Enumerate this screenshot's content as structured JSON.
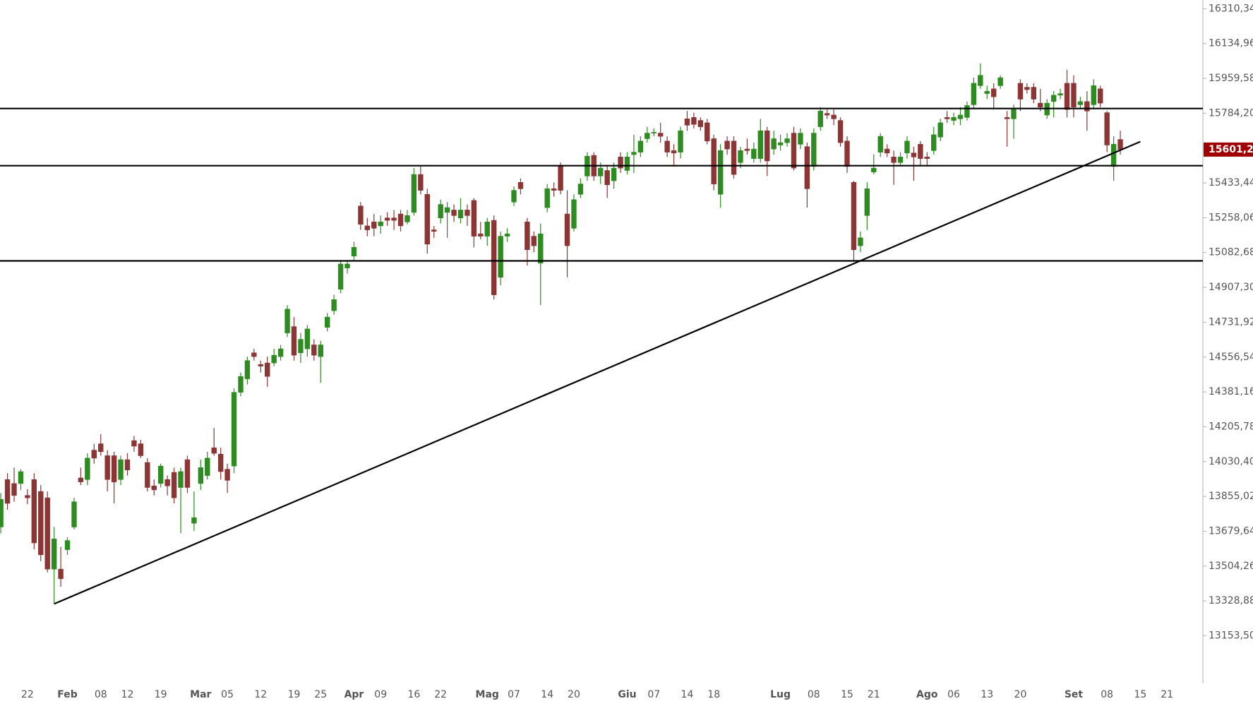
{
  "chart_data": {
    "type": "candlestick",
    "categories": [
      null,
      null,
      null,
      null,
      "22",
      null,
      null,
      null,
      null,
      null,
      "Feb",
      null,
      null,
      null,
      null,
      "08",
      null,
      null,
      null,
      "12",
      null,
      null,
      null,
      null,
      "19",
      null,
      null,
      null,
      null,
      null,
      "Mar",
      null,
      null,
      null,
      "05",
      null,
      null,
      null,
      null,
      "12",
      null,
      null,
      null,
      null,
      "19",
      null,
      null,
      null,
      "25",
      null,
      null,
      null,
      null,
      "Apr",
      null,
      null,
      null,
      "09",
      null,
      null,
      null,
      null,
      "16",
      null,
      null,
      null,
      "22",
      null,
      null,
      null,
      null,
      null,
      null,
      "Mag",
      null,
      null,
      null,
      "07",
      null,
      null,
      null,
      null,
      "14",
      null,
      null,
      null,
      "20",
      null,
      null,
      null,
      null,
      null,
      null,
      null,
      "Giu",
      null,
      null,
      null,
      "07",
      null,
      null,
      null,
      null,
      "14",
      null,
      null,
      null,
      "18",
      null,
      null,
      null,
      null,
      null,
      null,
      null,
      null,
      null,
      "Lug",
      null,
      null,
      null,
      null,
      "08",
      null,
      null,
      null,
      null,
      "15",
      null,
      null,
      null,
      "21",
      null,
      null,
      null,
      null,
      null,
      null,
      null,
      "Ago",
      null,
      null,
      null,
      "06",
      null,
      null,
      null,
      null,
      "13",
      null,
      null,
      null,
      null,
      "20",
      null,
      null,
      null,
      null,
      null,
      null,
      null,
      "Set",
      null,
      null,
      null,
      null,
      "08",
      null,
      null,
      null,
      null,
      "15",
      null,
      null,
      null,
      "21"
    ],
    "values": [
      [
        13701,
        13872,
        13669,
        13840
      ],
      [
        13940,
        13972,
        13788,
        13820
      ],
      [
        13920,
        14000,
        13828,
        13860
      ],
      [
        13920,
        13992,
        13888,
        13980
      ],
      [
        13860,
        13892,
        13816,
        13848
      ],
      [
        13940,
        13972,
        13589,
        13621
      ],
      [
        13880,
        13912,
        13529,
        13561
      ],
      [
        13848,
        13880,
        13473,
        13489
      ],
      [
        13489,
        13701,
        13314,
        13641
      ],
      [
        13489,
        13601,
        13401,
        13441
      ],
      [
        13587,
        13649,
        13561,
        13633
      ],
      [
        13701,
        13848,
        13689,
        13828
      ],
      [
        13948,
        14000,
        13912,
        13928
      ],
      [
        13940,
        14072,
        13912,
        14048
      ],
      [
        14088,
        14120,
        14020,
        14048
      ],
      [
        14120,
        14168,
        14060,
        14080
      ],
      [
        14060,
        14088,
        13880,
        13940
      ],
      [
        14060,
        14080,
        13820,
        13928
      ],
      [
        13940,
        14060,
        13912,
        14040
      ],
      [
        14040,
        14072,
        13960,
        13988
      ],
      [
        14136,
        14160,
        14080,
        14108
      ],
      [
        14120,
        14140,
        14048,
        14060
      ],
      [
        14026,
        14048,
        13880,
        13900
      ],
      [
        13908,
        13940,
        13860,
        13888
      ],
      [
        13920,
        14020,
        13900,
        14008
      ],
      [
        13940,
        13960,
        13860,
        13908
      ],
      [
        13976,
        14000,
        13820,
        13848
      ],
      [
        13900,
        14000,
        13669,
        13980
      ],
      [
        14040,
        14060,
        13872,
        13900
      ],
      [
        13720,
        13880,
        13681,
        13748
      ],
      [
        13920,
        14040,
        13888,
        14000
      ],
      [
        13960,
        14080,
        13940,
        14048
      ],
      [
        14100,
        14200,
        14060,
        14072
      ],
      [
        14068,
        14100,
        13940,
        13980
      ],
      [
        13992,
        14020,
        13872,
        13936
      ],
      [
        14008,
        14399,
        13972,
        14379
      ],
      [
        14379,
        14479,
        14359,
        14459
      ],
      [
        14447,
        14559,
        14419,
        14539
      ],
      [
        14578,
        14598,
        14539,
        14559
      ],
      [
        14519,
        14539,
        14479,
        14511
      ],
      [
        14527,
        14559,
        14407,
        14459
      ],
      [
        14527,
        14598,
        14511,
        14566
      ],
      [
        14559,
        14618,
        14539,
        14598
      ],
      [
        14678,
        14818,
        14658,
        14798
      ],
      [
        14710,
        14758,
        14539,
        14566
      ],
      [
        14578,
        14678,
        14527,
        14646
      ],
      [
        14598,
        14718,
        14559,
        14698
      ],
      [
        14618,
        14646,
        14539,
        14566
      ],
      [
        14559,
        14638,
        14427,
        14618
      ],
      [
        14706,
        14778,
        14686,
        14758
      ],
      [
        14790,
        14870,
        14770,
        14846
      ],
      [
        14898,
        15045,
        14878,
        15025
      ],
      [
        15005,
        15045,
        14977,
        15025
      ],
      [
        15065,
        15137,
        15045,
        15109
      ],
      [
        15317,
        15337,
        15197,
        15225
      ],
      [
        15217,
        15257,
        15165,
        15197
      ],
      [
        15237,
        15277,
        15165,
        15205
      ],
      [
        15217,
        15269,
        15177,
        15237
      ],
      [
        15257,
        15285,
        15217,
        15245
      ],
      [
        15257,
        15297,
        15197,
        15245
      ],
      [
        15277,
        15297,
        15189,
        15217
      ],
      [
        15237,
        15297,
        15225,
        15269
      ],
      [
        15285,
        15508,
        15269,
        15476
      ],
      [
        15476,
        15516,
        15376,
        15396
      ],
      [
        15376,
        15404,
        15077,
        15125
      ],
      [
        15197,
        15217,
        15157,
        15189
      ],
      [
        15257,
        15349,
        15229,
        15325
      ],
      [
        15285,
        15337,
        15157,
        15309
      ],
      [
        15297,
        15325,
        15237,
        15269
      ],
      [
        15257,
        15357,
        15229,
        15297
      ],
      [
        15297,
        15325,
        15217,
        15269
      ],
      [
        15345,
        15357,
        15109,
        15165
      ],
      [
        15177,
        15237,
        15149,
        15165
      ],
      [
        15165,
        15257,
        15117,
        15237
      ],
      [
        15245,
        15269,
        14846,
        14870
      ],
      [
        14958,
        15189,
        14918,
        15165
      ],
      [
        15165,
        15205,
        15137,
        15177
      ],
      [
        15337,
        15416,
        15317,
        15396
      ],
      [
        15436,
        15456,
        15376,
        15404
      ],
      [
        15237,
        15257,
        15017,
        15097
      ],
      [
        15165,
        15189,
        15085,
        15117
      ],
      [
        15029,
        15229,
        14818,
        15177
      ],
      [
        15309,
        15428,
        15285,
        15404
      ],
      [
        15404,
        15436,
        15364,
        15396
      ],
      [
        15516,
        15536,
        15376,
        15396
      ],
      [
        15277,
        15396,
        14958,
        15117
      ],
      [
        15205,
        15376,
        15189,
        15349
      ],
      [
        15376,
        15456,
        15357,
        15428
      ],
      [
        15468,
        15588,
        15444,
        15568
      ],
      [
        15572,
        15588,
        15444,
        15468
      ],
      [
        15468,
        15536,
        15428,
        15508
      ],
      [
        15496,
        15524,
        15357,
        15424
      ],
      [
        15444,
        15536,
        15404,
        15508
      ],
      [
        15564,
        15588,
        15484,
        15508
      ],
      [
        15496,
        15588,
        15476,
        15564
      ],
      [
        15576,
        15676,
        15484,
        15588
      ],
      [
        15588,
        15668,
        15564,
        15644
      ],
      [
        15656,
        15716,
        15636,
        15684
      ],
      [
        15684,
        15708,
        15668,
        15688
      ],
      [
        15684,
        15736,
        15636,
        15668
      ],
      [
        15644,
        15668,
        15564,
        15588
      ],
      [
        15596,
        15628,
        15516,
        15584
      ],
      [
        15588,
        15716,
        15556,
        15696
      ],
      [
        15756,
        15795,
        15696,
        15724
      ],
      [
        15763,
        15787,
        15708,
        15728
      ],
      [
        15748,
        15763,
        15696,
        15716
      ],
      [
        15736,
        15756,
        15628,
        15644
      ],
      [
        15656,
        15676,
        15396,
        15428
      ],
      [
        15376,
        15628,
        15309,
        15596
      ],
      [
        15644,
        15668,
        15576,
        15604
      ],
      [
        15644,
        15668,
        15456,
        15476
      ],
      [
        15536,
        15616,
        15508,
        15596
      ],
      [
        15604,
        15656,
        15576,
        15596
      ],
      [
        15556,
        15636,
        15536,
        15604
      ],
      [
        15556,
        15756,
        15536,
        15696
      ],
      [
        15696,
        15716,
        15468,
        15544
      ],
      [
        15604,
        15696,
        15576,
        15656
      ],
      [
        15624,
        15676,
        15596,
        15636
      ],
      [
        15636,
        15684,
        15616,
        15656
      ],
      [
        15684,
        15716,
        15496,
        15508
      ],
      [
        15628,
        15708,
        15604,
        15684
      ],
      [
        15616,
        15636,
        15309,
        15404
      ],
      [
        15516,
        15708,
        15496,
        15684
      ],
      [
        15716,
        15815,
        15696,
        15795
      ],
      [
        15783,
        15803,
        15756,
        15775
      ],
      [
        15775,
        15803,
        15724,
        15756
      ],
      [
        15748,
        15763,
        15616,
        15636
      ],
      [
        15644,
        15668,
        15484,
        15516
      ],
      [
        15436,
        15444,
        15037,
        15097
      ],
      [
        15117,
        15189,
        15085,
        15157
      ],
      [
        15269,
        15436,
        15197,
        15404
      ],
      [
        15488,
        15576,
        15476,
        15508
      ],
      [
        15588,
        15684,
        15564,
        15668
      ],
      [
        15604,
        15628,
        15564,
        15584
      ],
      [
        15564,
        15596,
        15424,
        15536
      ],
      [
        15536,
        15588,
        15516,
        15564
      ],
      [
        15584,
        15668,
        15556,
        15644
      ],
      [
        15584,
        15616,
        15444,
        15564
      ],
      [
        15628,
        15644,
        15516,
        15556
      ],
      [
        15564,
        15588,
        15516,
        15556
      ],
      [
        15596,
        15716,
        15576,
        15676
      ],
      [
        15664,
        15756,
        15644,
        15736
      ],
      [
        15763,
        15795,
        15736,
        15756
      ],
      [
        15748,
        15787,
        15724,
        15763
      ],
      [
        15756,
        15815,
        15724,
        15775
      ],
      [
        15763,
        15843,
        15748,
        15823
      ],
      [
        15827,
        15963,
        15803,
        15935
      ],
      [
        15923,
        16035,
        15907,
        15975
      ],
      [
        15883,
        15923,
        15855,
        15895
      ],
      [
        15907,
        15935,
        15803,
        15867
      ],
      [
        15923,
        15975,
        15907,
        15963
      ],
      [
        15763,
        15795,
        15616,
        15756
      ],
      [
        15756,
        15827,
        15656,
        15803
      ],
      [
        15935,
        15955,
        15795,
        15855
      ],
      [
        15915,
        15935,
        15883,
        15903
      ],
      [
        15915,
        15935,
        15835,
        15855
      ],
      [
        15835,
        15907,
        15795,
        15815
      ],
      [
        15775,
        15855,
        15756,
        15835
      ],
      [
        15843,
        15895,
        15763,
        15875
      ],
      [
        15875,
        15907,
        15855,
        15883
      ],
      [
        15935,
        16003,
        15763,
        15803
      ],
      [
        15935,
        15975,
        15763,
        15815
      ],
      [
        15827,
        15867,
        15803,
        15843
      ],
      [
        15843,
        15895,
        15696,
        15795
      ],
      [
        15827,
        15955,
        15803,
        15923
      ],
      [
        15907,
        15923,
        15815,
        15835
      ],
      [
        15787,
        15795,
        15588,
        15624
      ],
      [
        15516,
        15668,
        15444,
        15628
      ],
      [
        15652,
        15696,
        15576,
        15601.2
      ],
      null,
      null,
      null,
      null,
      null,
      null,
      null
    ],
    "up_color": "#2e8b22",
    "down_color": "#8b3535",
    "ylim": [
      12913.6,
      16354.25
    ],
    "yticks": [
      {
        "value": 16310.34,
        "label": "16310,34"
      },
      {
        "value": 16134.96,
        "label": "16134,96"
      },
      {
        "value": 15959.58,
        "label": "15959,58"
      },
      {
        "value": 15784.2,
        "label": "15784,20"
      },
      {
        "value": 15433.44,
        "label": "15433,44"
      },
      {
        "value": 15258.06,
        "label": "15258,06"
      },
      {
        "value": 15082.68,
        "label": "15082,68"
      },
      {
        "value": 14907.3,
        "label": "14907,30"
      },
      {
        "value": 14731.92,
        "label": "14731,92"
      },
      {
        "value": 14556.54,
        "label": "14556,54"
      },
      {
        "value": 14381.16,
        "label": "14381,16"
      },
      {
        "value": 14205.78,
        "label": "14205,78"
      },
      {
        "value": 14030.4,
        "label": "14030,40"
      },
      {
        "value": 13855.02,
        "label": "13855,02"
      },
      {
        "value": 13679.64,
        "label": "13679,64"
      },
      {
        "value": 13504.26,
        "label": "13504,26"
      },
      {
        "value": 13328.88,
        "label": "13328,88"
      },
      {
        "value": 13153.5,
        "label": "13153,50"
      }
    ],
    "current_price": {
      "value": 15601.2,
      "label": "15601,20"
    },
    "hlines": [
      15808,
      15520,
      15041
    ],
    "trendline": {
      "from": [
        8,
        13314
      ],
      "to": [
        171,
        15641
      ]
    }
  }
}
